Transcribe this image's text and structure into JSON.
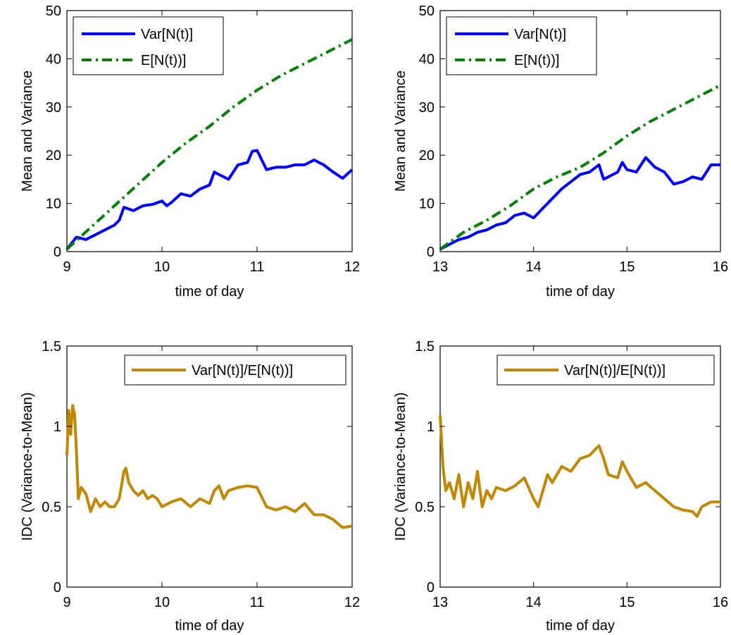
{
  "chart_data": [
    {
      "type": "line",
      "xlabel": "time of day",
      "ylabel": "Mean and Variance",
      "xlim": [
        9,
        12
      ],
      "ylim": [
        0,
        50
      ],
      "xticks": [
        9,
        10,
        11,
        12
      ],
      "yticks": [
        0,
        10,
        20,
        30,
        40,
        50
      ],
      "grid": false,
      "legend_position": "top-left",
      "series": [
        {
          "name": "Var[N(t)]",
          "color": "#0000FF",
          "style": "solid",
          "x": [
            9.0,
            9.1,
            9.2,
            9.3,
            9.4,
            9.5,
            9.55,
            9.6,
            9.7,
            9.8,
            9.9,
            10.0,
            10.05,
            10.1,
            10.2,
            10.3,
            10.4,
            10.5,
            10.55,
            10.6,
            10.7,
            10.8,
            10.9,
            10.95,
            11.0,
            11.1,
            11.2,
            11.3,
            11.4,
            11.5,
            11.6,
            11.7,
            11.8,
            11.9,
            12.0
          ],
          "y": [
            0.5,
            3,
            2.5,
            3.5,
            4.5,
            5.5,
            6.5,
            9.2,
            8.5,
            9.5,
            9.8,
            10.5,
            9.5,
            10.2,
            12,
            11.5,
            13,
            13.8,
            16.5,
            16,
            15,
            18,
            18.5,
            20.8,
            21,
            17,
            17.5,
            17.5,
            18,
            18,
            19,
            18,
            16.5,
            15.2,
            17
          ]
        },
        {
          "name": "E[N(t))]",
          "color": "#008000",
          "style": "dashdot",
          "x": [
            9.0,
            9.25,
            9.5,
            9.75,
            10.0,
            10.25,
            10.5,
            10.75,
            11.0,
            11.25,
            11.5,
            11.75,
            12.0
          ],
          "y": [
            0.5,
            5,
            9.5,
            14,
            18.5,
            22.5,
            26,
            30,
            33.5,
            36.5,
            39,
            41.5,
            44
          ]
        }
      ]
    },
    {
      "type": "line",
      "xlabel": "time of day",
      "ylabel": "Mean and Variance",
      "xlim": [
        13,
        16
      ],
      "ylim": [
        0,
        50
      ],
      "xticks": [
        13,
        14,
        15,
        16
      ],
      "yticks": [
        0,
        10,
        20,
        30,
        40,
        50
      ],
      "grid": false,
      "legend_position": "top-left",
      "series": [
        {
          "name": "Var[N(t)]",
          "color": "#0000FF",
          "style": "solid",
          "x": [
            13.0,
            13.1,
            13.2,
            13.3,
            13.4,
            13.5,
            13.6,
            13.7,
            13.8,
            13.9,
            14.0,
            14.1,
            14.2,
            14.3,
            14.4,
            14.5,
            14.6,
            14.7,
            14.75,
            14.8,
            14.9,
            14.95,
            15.0,
            15.1,
            15.2,
            15.3,
            15.4,
            15.5,
            15.6,
            15.7,
            15.8,
            15.9,
            16.0
          ],
          "y": [
            0.5,
            1.5,
            2.5,
            3,
            4,
            4.5,
            5.5,
            6,
            7.5,
            8,
            7,
            9,
            11,
            13,
            14.5,
            16,
            16.5,
            18,
            15,
            15.5,
            16.5,
            18.5,
            17,
            16.5,
            19.5,
            17.5,
            16.5,
            14,
            14.5,
            15.5,
            15,
            18,
            18
          ]
        },
        {
          "name": "E[N(t))]",
          "color": "#008000",
          "style": "dashdot",
          "x": [
            13.0,
            13.25,
            13.5,
            13.75,
            14.0,
            14.25,
            14.5,
            14.75,
            15.0,
            15.25,
            15.5,
            15.75,
            16.0
          ],
          "y": [
            0.5,
            4,
            6.5,
            9.5,
            13,
            15.5,
            17.5,
            20.5,
            24,
            27,
            29.5,
            32,
            34.5
          ]
        }
      ]
    },
    {
      "type": "line",
      "xlabel": "time of day",
      "ylabel": "IDC (Variance-to-Mean)",
      "xlim": [
        9,
        12
      ],
      "ylim": [
        0,
        1.5
      ],
      "xticks": [
        9,
        10,
        11,
        12
      ],
      "yticks": [
        0,
        0.5,
        1,
        1.5
      ],
      "grid": false,
      "legend_position": "top-right",
      "series": [
        {
          "name": "Var[N(t)]/E[N(t))]",
          "color": "#C08800",
          "style": "solid",
          "x": [
            9.0,
            9.02,
            9.04,
            9.06,
            9.08,
            9.1,
            9.12,
            9.15,
            9.2,
            9.25,
            9.3,
            9.35,
            9.4,
            9.45,
            9.5,
            9.55,
            9.6,
            9.62,
            9.65,
            9.7,
            9.75,
            9.8,
            9.85,
            9.9,
            9.95,
            10.0,
            10.1,
            10.2,
            10.3,
            10.4,
            10.5,
            10.55,
            10.6,
            10.65,
            10.7,
            10.8,
            10.9,
            11.0,
            11.1,
            11.2,
            11.3,
            11.4,
            11.5,
            11.6,
            11.7,
            11.8,
            11.9,
            12.0
          ],
          "y": [
            0.82,
            1.1,
            0.95,
            1.13,
            1.08,
            0.85,
            0.55,
            0.62,
            0.58,
            0.47,
            0.55,
            0.5,
            0.53,
            0.5,
            0.5,
            0.55,
            0.72,
            0.74,
            0.65,
            0.6,
            0.57,
            0.6,
            0.55,
            0.57,
            0.55,
            0.5,
            0.53,
            0.55,
            0.5,
            0.55,
            0.52,
            0.6,
            0.63,
            0.55,
            0.6,
            0.62,
            0.63,
            0.62,
            0.5,
            0.48,
            0.5,
            0.47,
            0.52,
            0.45,
            0.45,
            0.42,
            0.37,
            0.38
          ]
        }
      ]
    },
    {
      "type": "line",
      "xlabel": "time of day",
      "ylabel": "IDC (Variance-to-Mean)",
      "xlim": [
        13,
        16
      ],
      "ylim": [
        0,
        1.5
      ],
      "xticks": [
        13,
        14,
        15,
        16
      ],
      "yticks": [
        0,
        0.5,
        1,
        1.5
      ],
      "grid": false,
      "legend_position": "top-right",
      "series": [
        {
          "name": "Var[N(t)]/E[N(t))]",
          "color": "#C08800",
          "style": "solid",
          "x": [
            13.0,
            13.03,
            13.06,
            13.1,
            13.15,
            13.2,
            13.25,
            13.3,
            13.35,
            13.4,
            13.45,
            13.5,
            13.55,
            13.6,
            13.7,
            13.8,
            13.9,
            14.0,
            14.05,
            14.1,
            14.15,
            14.2,
            14.3,
            14.4,
            14.5,
            14.6,
            14.65,
            14.7,
            14.75,
            14.8,
            14.9,
            14.95,
            15.0,
            15.1,
            15.2,
            15.3,
            15.4,
            15.5,
            15.6,
            15.7,
            15.75,
            15.8,
            15.9,
            16.0
          ],
          "y": [
            1.07,
            0.75,
            0.6,
            0.65,
            0.55,
            0.7,
            0.5,
            0.65,
            0.55,
            0.72,
            0.5,
            0.6,
            0.55,
            0.62,
            0.6,
            0.63,
            0.68,
            0.55,
            0.5,
            0.6,
            0.7,
            0.65,
            0.75,
            0.72,
            0.8,
            0.82,
            0.85,
            0.88,
            0.8,
            0.7,
            0.68,
            0.78,
            0.72,
            0.62,
            0.65,
            0.6,
            0.55,
            0.5,
            0.48,
            0.47,
            0.44,
            0.5,
            0.53,
            0.53
          ]
        }
      ]
    }
  ]
}
